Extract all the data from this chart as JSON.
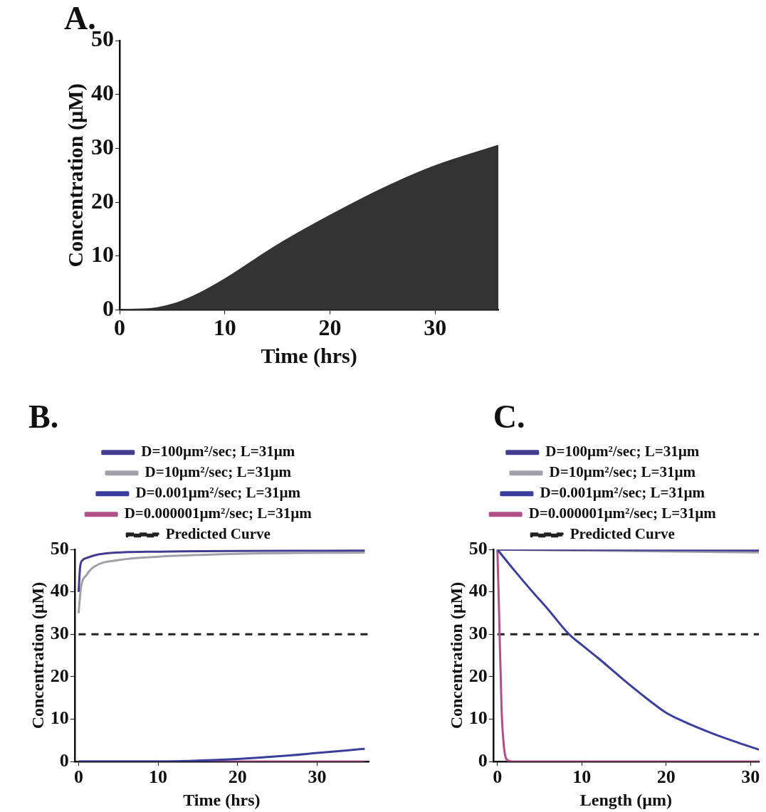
{
  "chart_data": [
    {
      "type": "area",
      "title": "A.",
      "xlabel": "Time (hrs)",
      "ylabel": "Concentration (µM)",
      "xlim": [
        0,
        36
      ],
      "ylim": [
        0,
        50
      ],
      "xticks": [
        0,
        10,
        20,
        30
      ],
      "yticks": [
        0,
        10,
        20,
        30,
        40,
        50
      ],
      "grid": false,
      "legend": false,
      "series": [
        {
          "color": "#333333",
          "x": [
            0,
            3,
            5,
            7,
            10,
            13,
            15,
            20,
            25,
            30,
            36
          ],
          "values": [
            0,
            0.2,
            1,
            2.5,
            5.7,
            9.5,
            12,
            17.5,
            22.5,
            26.7,
            30.5
          ]
        }
      ]
    },
    {
      "type": "line",
      "title": "B.",
      "xlabel": "Time (hrs)",
      "ylabel": "Concentration (µM)",
      "xlim": [
        -0.5,
        36.5
      ],
      "ylim": [
        0,
        50
      ],
      "xticks": [
        0,
        10,
        20,
        30
      ],
      "yticks": [
        0,
        10,
        20,
        30,
        40,
        50
      ],
      "grid": false,
      "legend": "top",
      "series": [
        {
          "name": "D=100µm²/sec; L=31µm",
          "color": "#433c90",
          "x": [
            0,
            0.2,
            0.5,
            1,
            3,
            10,
            36
          ],
          "values": [
            40,
            46,
            47.5,
            48,
            49,
            49.5,
            49.8
          ]
        },
        {
          "name": "D=10µm²/sec; L=31µm",
          "color": "#a0a0aa",
          "x": [
            0,
            0.3,
            1,
            2,
            5,
            10,
            20,
            36
          ],
          "values": [
            35,
            41,
            44,
            46,
            47.5,
            48.3,
            49,
            49.3
          ]
        },
        {
          "name": "D=0.001µm²/sec; L=31µm",
          "color": "#3a3f9e",
          "x": [
            0,
            10,
            15,
            20,
            25,
            30,
            36
          ],
          "values": [
            0,
            0,
            0.2,
            0.6,
            1.2,
            2,
            3
          ]
        },
        {
          "name": "D=0.000001µm²/sec; L=31µm",
          "color": "#b0508a",
          "x": [
            0,
            36
          ],
          "values": [
            0,
            0
          ]
        },
        {
          "name": "Predicted Curve",
          "color": "#222222",
          "line_style": "dashed",
          "x": [
            0,
            36.5
          ],
          "values": [
            30,
            30
          ]
        }
      ]
    },
    {
      "type": "line",
      "title": "C.",
      "xlabel": "Length (µm)",
      "ylabel": "Concentration (µM)",
      "xlim": [
        -0.5,
        31
      ],
      "ylim": [
        0,
        50
      ],
      "xticks": [
        0,
        10,
        20,
        30
      ],
      "yticks": [
        0,
        10,
        20,
        30,
        40,
        50
      ],
      "grid": false,
      "legend": "top",
      "series": [
        {
          "name": "D=100µm²/sec; L=31µm",
          "color": "#433c90",
          "x": [
            0,
            31
          ],
          "values": [
            50,
            49.8
          ]
        },
        {
          "name": "D=10µm²/sec; L=31µm",
          "color": "#a0a0aa",
          "x": [
            0,
            31
          ],
          "values": [
            50,
            49.3
          ]
        },
        {
          "name": "D=0.001µm²/sec; L=31µm",
          "color": "#3a3f9e",
          "x": [
            0,
            2,
            4,
            6,
            8.5,
            10,
            12,
            15,
            18,
            20,
            22,
            25,
            28,
            31
          ],
          "values": [
            50,
            45.1,
            40.4,
            35.9,
            30,
            27.5,
            24.3,
            19.2,
            14.4,
            11.5,
            9.5,
            7,
            4.8,
            2.8
          ]
        },
        {
          "name": "D=0.000001µm²/sec; L=31µm",
          "color": "#b0508a",
          "x": [
            0,
            0.2,
            0.5,
            0.8,
            1.2,
            2,
            31
          ],
          "values": [
            50,
            35,
            12,
            3,
            0.3,
            0,
            0
          ]
        },
        {
          "name": "Predicted Curve",
          "color": "#222222",
          "line_style": "dashed",
          "x": [
            0,
            31
          ],
          "values": [
            30,
            30
          ]
        }
      ]
    }
  ]
}
